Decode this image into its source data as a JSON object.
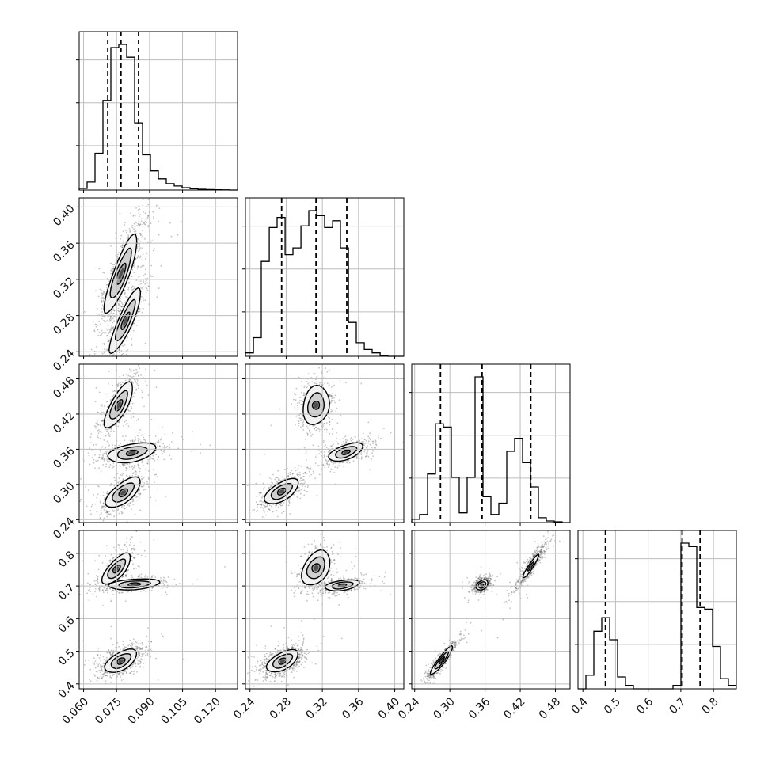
{
  "chart_data": {
    "type": "corner",
    "title": "",
    "grid": true,
    "parameters": [
      {
        "index": 0,
        "range": [
          0.058,
          0.13
        ],
        "ticks": [
          0.06,
          0.075,
          0.09,
          0.105,
          0.12
        ],
        "tick_labels": [
          "0.060",
          "0.075",
          "0.090",
          "0.105",
          "0.120"
        ],
        "quantiles": [
          0.071,
          0.077,
          0.085
        ],
        "histogram": {
          "bin_edges": [
            0.058,
            0.0616,
            0.0652,
            0.0688,
            0.0724,
            0.076,
            0.0796,
            0.0832,
            0.0868,
            0.0904,
            0.094,
            0.0976,
            0.1012,
            0.1048,
            0.1084,
            0.112,
            0.1156,
            0.1192,
            0.1228,
            0.1264,
            0.13
          ],
          "counts": [
            0.01,
            0.05,
            0.23,
            0.56,
            0.89,
            0.91,
            0.83,
            0.42,
            0.22,
            0.12,
            0.07,
            0.04,
            0.025,
            0.015,
            0.008,
            0.005,
            0.003,
            0.002,
            0.001,
            0.0
          ]
        }
      },
      {
        "index": 1,
        "range": [
          0.235,
          0.41
        ],
        "ticks": [
          0.24,
          0.28,
          0.32,
          0.36,
          0.4
        ],
        "tick_labels": [
          "0.24",
          "0.28",
          "0.32",
          "0.36",
          "0.40"
        ],
        "quantiles": [
          0.275,
          0.313,
          0.347
        ],
        "histogram": {
          "bin_edges": [
            0.235,
            0.2438,
            0.2525,
            0.2613,
            0.27,
            0.2788,
            0.2875,
            0.2963,
            0.305,
            0.3138,
            0.3225,
            0.3313,
            0.34,
            0.3488,
            0.3575,
            0.3663,
            0.375,
            0.3838,
            0.3925,
            0.4013,
            0.41
          ],
          "counts": [
            0.02,
            0.11,
            0.56,
            0.76,
            0.82,
            0.6,
            0.64,
            0.77,
            0.86,
            0.83,
            0.76,
            0.8,
            0.64,
            0.2,
            0.08,
            0.04,
            0.02,
            0.005,
            0.0,
            0.0
          ]
        }
      },
      {
        "index": 2,
        "range": [
          0.235,
          0.505
        ],
        "ticks": [
          0.24,
          0.3,
          0.36,
          0.42,
          0.48
        ],
        "tick_labels": [
          "0.24",
          "0.30",
          "0.36",
          "0.42",
          "0.48"
        ],
        "quantiles": [
          0.284,
          0.355,
          0.438
        ],
        "histogram": {
          "bin_edges": [
            0.235,
            0.2485,
            0.262,
            0.2755,
            0.289,
            0.3025,
            0.316,
            0.3295,
            0.343,
            0.3565,
            0.37,
            0.3835,
            0.397,
            0.4105,
            0.424,
            0.4375,
            0.451,
            0.4645,
            0.478,
            0.4915,
            0.505
          ],
          "counts": [
            0.02,
            0.05,
            0.3,
            0.61,
            0.59,
            0.28,
            0.06,
            0.28,
            0.9,
            0.16,
            0.05,
            0.12,
            0.44,
            0.52,
            0.37,
            0.22,
            0.03,
            0.01,
            0.005,
            0.0
          ]
        }
      },
      {
        "index": 3,
        "range": [
          0.385,
          0.87
        ],
        "ticks": [
          0.4,
          0.5,
          0.6,
          0.7,
          0.8
        ],
        "tick_labels": [
          "0.4",
          "0.5",
          "0.6",
          "0.7",
          "0.8"
        ],
        "quantiles": [
          0.469,
          0.704,
          0.759
        ],
        "histogram": {
          "bin_edges": [
            0.385,
            0.4093,
            0.4335,
            0.4578,
            0.482,
            0.5063,
            0.5305,
            0.5548,
            0.579,
            0.6033,
            0.6275,
            0.6518,
            0.676,
            0.7003,
            0.7245,
            0.7488,
            0.773,
            0.7973,
            0.8215,
            0.8458,
            0.87
          ],
          "counts": [
            0.0,
            0.08,
            0.34,
            0.42,
            0.29,
            0.07,
            0.02,
            0.0,
            0.0,
            0.0,
            0.0,
            0.0,
            0.02,
            0.86,
            0.84,
            0.48,
            0.47,
            0.25,
            0.06,
            0.02
          ]
        }
      }
    ],
    "pairs": [
      {
        "x": 0,
        "y": 1,
        "clusters": [
          {
            "center": [
              0.077,
              0.326
            ],
            "sigma": [
              0.005,
              0.029
            ],
            "rho": 0.85,
            "weight": 0.62,
            "levels": [
              [
                0.4,
                0.55
              ],
              [
                0.95,
                1.0
              ],
              [
                1.5,
                1.45
              ]
            ]
          },
          {
            "center": [
              0.079,
              0.274
            ],
            "sigma": [
              0.0048,
              0.024
            ],
            "rho": 0.85,
            "weight": 0.38,
            "levels": [
              [
                0.4,
                0.45
              ],
              [
                0.95,
                0.9
              ],
              [
                1.5,
                1.4
              ]
            ]
          }
        ]
      },
      {
        "x": 0,
        "y": 2,
        "clusters": [
          {
            "center": [
              0.076,
              0.435
            ],
            "sigma": [
              0.0045,
              0.027
            ],
            "rho": 0.75,
            "weight": 0.34,
            "levels": [
              [
                0.35,
                0.45
              ],
              [
                0.9,
                0.9
              ],
              [
                1.45,
                1.4
              ]
            ]
          },
          {
            "center": [
              0.082,
              0.354
            ],
            "sigma": [
              0.0075,
              0.012
            ],
            "rho": 0.4,
            "weight": 0.33,
            "levels": [
              [
                0.35,
                0.4
              ],
              [
                0.9,
                0.9
              ],
              [
                1.45,
                1.4
              ]
            ]
          },
          {
            "center": [
              0.078,
              0.286
            ],
            "sigma": [
              0.0055,
              0.018
            ],
            "rho": 0.65,
            "weight": 0.33,
            "levels": [
              [
                0.35,
                0.45
              ],
              [
                0.9,
                0.9
              ],
              [
                1.45,
                1.4
              ]
            ]
          }
        ]
      },
      {
        "x": 1,
        "y": 2,
        "clusters": [
          {
            "center": [
              0.313,
              0.435
            ],
            "sigma": [
              0.01,
              0.023
            ],
            "rho": 0.15,
            "weight": 0.34,
            "levels": [
              [
                0.3,
                0.4
              ],
              [
                0.9,
                0.9
              ],
              [
                1.45,
                1.45
              ]
            ]
          },
          {
            "center": [
              0.346,
              0.355
            ],
            "sigma": [
              0.013,
              0.011
            ],
            "rho": 0.55,
            "weight": 0.33,
            "levels": [
              [
                0.35,
                0.4
              ],
              [
                0.9,
                0.9
              ],
              [
                1.45,
                1.4
              ]
            ]
          },
          {
            "center": [
              0.275,
              0.288
            ],
            "sigma": [
              0.013,
              0.015
            ],
            "rho": 0.6,
            "weight": 0.33,
            "levels": [
              [
                0.35,
                0.45
              ],
              [
                0.9,
                0.9
              ],
              [
                1.45,
                1.4
              ]
            ]
          }
        ]
      },
      {
        "x": 0,
        "y": 3,
        "clusters": [
          {
            "center": [
              0.075,
              0.752
            ],
            "sigma": [
              0.0045,
              0.033
            ],
            "rho": 0.7,
            "weight": 0.25,
            "levels": [
              [
                0.35,
                0.45
              ],
              [
                0.9,
                0.9
              ],
              [
                1.45,
                1.4
              ]
            ]
          },
          {
            "center": [
              0.083,
              0.705
            ],
            "sigma": [
              0.008,
              0.012
            ],
            "rho": 0.3,
            "weight": 0.25,
            "levels": [
              [
                0.35,
                0.4
              ],
              [
                0.9,
                0.9
              ],
              [
                1.45,
                1.4
              ]
            ]
          },
          {
            "center": [
              0.077,
              0.47
            ],
            "sigma": [
              0.005,
              0.025
            ],
            "rho": 0.55,
            "weight": 0.5,
            "levels": [
              [
                0.35,
                0.45
              ],
              [
                0.9,
                0.9
              ],
              [
                1.45,
                1.4
              ]
            ]
          }
        ]
      },
      {
        "x": 1,
        "y": 3,
        "clusters": [
          {
            "center": [
              0.313,
              0.755
            ],
            "sigma": [
              0.011,
              0.037
            ],
            "rho": 0.35,
            "weight": 0.25,
            "levels": [
              [
                0.35,
                0.45
              ],
              [
                0.9,
                0.9
              ],
              [
                1.45,
                1.4
              ]
            ]
          },
          {
            "center": [
              0.342,
              0.702
            ],
            "sigma": [
              0.013,
              0.012
            ],
            "rho": 0.4,
            "weight": 0.25,
            "levels": [
              [
                0.35,
                0.4
              ],
              [
                0.9,
                0.9
              ],
              [
                1.45,
                1.4
              ]
            ]
          },
          {
            "center": [
              0.276,
              0.47
            ],
            "sigma": [
              0.012,
              0.024
            ],
            "rho": 0.55,
            "weight": 0.5,
            "levels": [
              [
                0.35,
                0.45
              ],
              [
                0.9,
                0.9
              ],
              [
                1.45,
                1.4
              ]
            ]
          }
        ]
      },
      {
        "x": 2,
        "y": 3,
        "clusters": [
          {
            "center": [
              0.438,
              0.76
            ],
            "sigma": [
              0.015,
              0.04
            ],
            "rho": 0.94,
            "weight": 0.3,
            "levels": [
              [
                0.35,
                0.4
              ],
              [
                0.9,
                0.9
              ]
            ]
          },
          {
            "center": [
              0.355,
              0.703
            ],
            "sigma": [
              0.007,
              0.011
            ],
            "rho": 0.35,
            "weight": 0.35,
            "levels": [
              [
                0.3,
                0.4
              ],
              [
                0.9,
                0.9
              ],
              [
                1.45,
                1.4
              ]
            ]
          },
          {
            "center": [
              0.286,
              0.472
            ],
            "sigma": [
              0.013,
              0.03
            ],
            "rho": 0.92,
            "weight": 0.35,
            "levels": [
              [
                0.35,
                0.4
              ],
              [
                0.9,
                0.9
              ],
              [
                1.45,
                1.45
              ]
            ]
          }
        ]
      }
    ]
  },
  "colors": {
    "points": "#555555",
    "lines": "#000000",
    "grid": "#bdbdbd",
    "fill_levels": [
      "#f2f2f2",
      "#d0d0d0",
      "#9c9c9c",
      "#505050"
    ]
  }
}
